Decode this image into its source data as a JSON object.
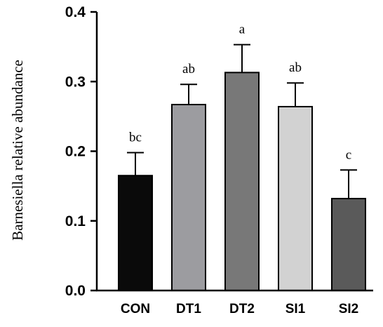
{
  "chart_data": {
    "type": "bar",
    "title": "",
    "xlabel": "",
    "ylabel": "Barnesiella relative abundance",
    "categories": [
      "CON",
      "DT1",
      "DT2",
      "SI1",
      "SI2"
    ],
    "values": [
      0.165,
      0.267,
      0.313,
      0.264,
      0.132
    ],
    "error": [
      0.033,
      0.029,
      0.04,
      0.034,
      0.041
    ],
    "significance": [
      "bc",
      "ab",
      "a",
      "ab",
      "c"
    ],
    "bar_colors": [
      "#0a0a0a",
      "#9c9ca0",
      "#787878",
      "#d2d2d2",
      "#5a5a5a"
    ],
    "ylim": [
      0,
      0.4
    ],
    "yticks": [
      "0.0",
      "0.1",
      "0.2",
      "0.3",
      "0.4"
    ],
    "grid": false,
    "legend": "none"
  }
}
